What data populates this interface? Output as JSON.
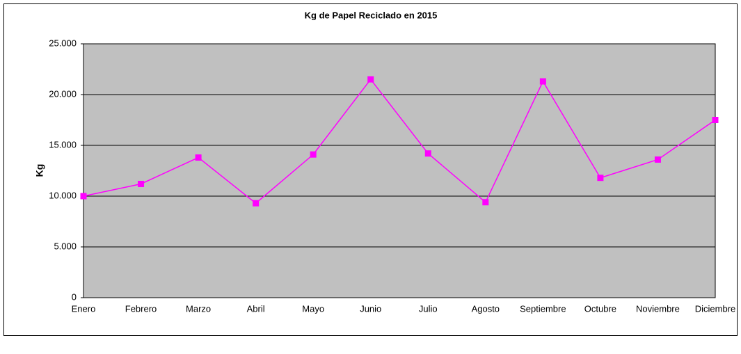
{
  "chart_data": {
    "type": "line",
    "title": "Kg de Papel Reciclado en 2015",
    "y_label": "Kg",
    "categories": [
      "Enero",
      "Febrero",
      "Marzo",
      "Abril",
      "Mayo",
      "Junio",
      "Julio",
      "Agosto",
      "Septiembre",
      "Octubre",
      "Noviembre",
      "Diciembre"
    ],
    "series": [
      {
        "name": "Kg",
        "color": "#ff00ff",
        "values": [
          10000,
          11200,
          13800,
          9300,
          14100,
          21500,
          14200,
          9400,
          21300,
          11800,
          13600,
          17500
        ]
      }
    ],
    "ylim": [
      0,
      25000
    ],
    "yticks": [
      0,
      {
        "value": 5000,
        "label": "5.000"
      },
      {
        "value": 10000,
        "label": "10.000"
      },
      {
        "value": 15000,
        "label": "15.000"
      },
      {
        "value": 20000,
        "label": "20.000"
      },
      {
        "value": 25000,
        "label": "25.000"
      }
    ],
    "grid": true
  }
}
